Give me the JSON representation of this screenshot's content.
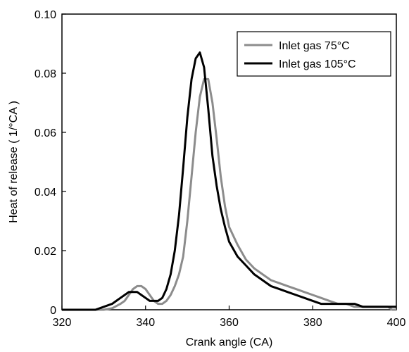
{
  "chart_data": {
    "type": "line",
    "title": "",
    "xlabel": "Crank angle (CA)",
    "ylabel": "Heat of release ( 1/°CA )",
    "xlim": [
      320,
      400
    ],
    "ylim": [
      0,
      0.1
    ],
    "xticks": [
      320,
      340,
      360,
      380,
      400
    ],
    "yticks": [
      0,
      0.02,
      0.04,
      0.06,
      0.08,
      0.1
    ],
    "xtick_labels": [
      "320",
      "340",
      "360",
      "380",
      "400"
    ],
    "ytick_labels": [
      "0",
      "0.02",
      "0.04",
      "0.06",
      "0.08",
      "0.10"
    ],
    "grid": false,
    "legend_position": "top-right",
    "series": [
      {
        "name": "Inlet gas 75°C",
        "color": "#8c8c8c",
        "x": [
          320,
          330,
          332,
          334,
          335,
          336,
          337,
          338,
          339,
          340,
          341,
          342,
          343,
          344,
          345,
          346,
          347,
          348,
          349,
          350,
          351,
          352,
          353,
          354,
          355,
          356,
          357,
          358,
          359,
          360,
          362,
          364,
          366,
          368,
          370,
          372,
          374,
          376,
          378,
          380,
          382,
          384,
          386,
          388,
          390,
          392,
          394,
          396,
          398,
          399,
          400
        ],
        "y": [
          0,
          0,
          0.0005,
          0.002,
          0.003,
          0.005,
          0.007,
          0.008,
          0.008,
          0.007,
          0.005,
          0.003,
          0.002,
          0.002,
          0.003,
          0.005,
          0.008,
          0.012,
          0.018,
          0.03,
          0.045,
          0.06,
          0.072,
          0.078,
          0.078,
          0.07,
          0.058,
          0.045,
          0.035,
          0.028,
          0.022,
          0.017,
          0.014,
          0.012,
          0.01,
          0.009,
          0.008,
          0.007,
          0.006,
          0.005,
          0.004,
          0.003,
          0.002,
          0.002,
          0.001,
          0.001,
          0.001,
          0.001,
          0.001,
          0,
          0
        ]
      },
      {
        "name": "Inlet gas 105°C",
        "color": "#000000",
        "x": [
          320,
          328,
          330,
          332,
          333,
          334,
          335,
          336,
          337,
          338,
          339,
          340,
          341,
          342,
          343,
          344,
          345,
          346,
          347,
          348,
          349,
          350,
          351,
          352,
          353,
          354,
          355,
          356,
          357,
          358,
          359,
          360,
          362,
          364,
          366,
          368,
          370,
          372,
          374,
          376,
          378,
          380,
          382,
          384,
          386,
          388,
          390,
          392,
          394,
          396,
          398,
          400
        ],
        "y": [
          0,
          0,
          0.001,
          0.002,
          0.003,
          0.004,
          0.005,
          0.006,
          0.006,
          0.006,
          0.005,
          0.004,
          0.003,
          0.003,
          0.003,
          0.004,
          0.007,
          0.012,
          0.02,
          0.032,
          0.048,
          0.065,
          0.078,
          0.085,
          0.087,
          0.082,
          0.068,
          0.052,
          0.042,
          0.034,
          0.028,
          0.023,
          0.018,
          0.015,
          0.012,
          0.01,
          0.008,
          0.007,
          0.006,
          0.005,
          0.004,
          0.003,
          0.002,
          0.002,
          0.002,
          0.002,
          0.002,
          0.001,
          0.001,
          0.001,
          0.001,
          0.001
        ]
      }
    ]
  }
}
